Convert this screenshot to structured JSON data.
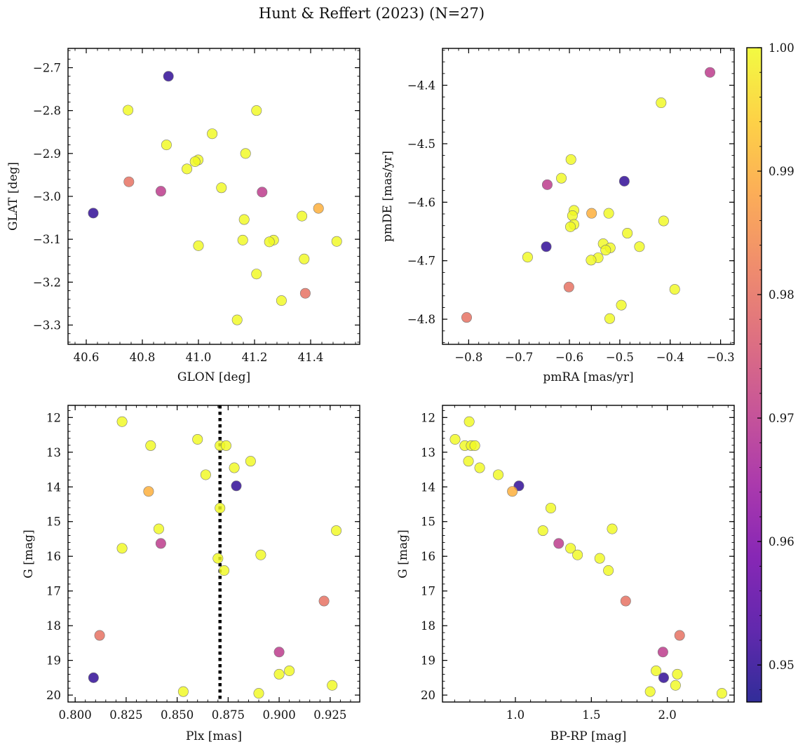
{
  "title": "Hunt & Reffert (2023) (N=27)",
  "colormap": {
    "stops": [
      "#0d0887",
      "#46039f",
      "#7201a8",
      "#9c179e",
      "#bd3786",
      "#d8576b",
      "#ed7953",
      "#fb9f3a",
      "#fdca26",
      "#f0f921"
    ],
    "vmin": 0.947,
    "vmax": 1.0,
    "ticks": [
      0.95,
      0.96,
      0.97,
      0.98,
      0.99,
      1.0
    ],
    "tick_labels": [
      "0.95",
      "0.96",
      "0.97",
      "0.98",
      "0.99",
      "1.00"
    ]
  },
  "chart_data": [
    {
      "type": "scatter",
      "xlabel": "GLON [deg]",
      "ylabel": "GLAT [deg]",
      "xlim": [
        40.535,
        41.575
      ],
      "ylim": [
        -3.345,
        -2.655
      ],
      "xticks": [
        40.6,
        40.8,
        41.0,
        41.2,
        41.4
      ],
      "xtick_labels": [
        "40.6",
        "40.8",
        "41.0",
        "41.2",
        "41.4"
      ],
      "yticks": [
        -2.7,
        -2.8,
        -2.9,
        -3.0,
        -3.1,
        -3.2,
        -3.3
      ],
      "ytick_labels": [
        "−2.7",
        "−2.8",
        "−2.9",
        "−3.0",
        "−3.1",
        "−3.2",
        "−3.3"
      ],
      "invert_y": false,
      "points": [
        {
          "x": 40.893,
          "y": -2.72,
          "c": 0.95
        },
        {
          "x": 40.749,
          "y": -2.799,
          "c": 1.0
        },
        {
          "x": 41.207,
          "y": -2.8,
          "c": 1.0
        },
        {
          "x": 41.049,
          "y": -2.854,
          "c": 1.0
        },
        {
          "x": 40.886,
          "y": -2.88,
          "c": 1.0
        },
        {
          "x": 41.168,
          "y": -2.9,
          "c": 1.0
        },
        {
          "x": 40.999,
          "y": -2.915,
          "c": 1.0
        },
        {
          "x": 40.988,
          "y": -2.919,
          "c": 1.0
        },
        {
          "x": 40.959,
          "y": -2.936,
          "c": 1.0
        },
        {
          "x": 40.752,
          "y": -2.966,
          "c": 0.98
        },
        {
          "x": 41.082,
          "y": -2.98,
          "c": 1.0
        },
        {
          "x": 40.866,
          "y": -2.988,
          "c": 0.97
        },
        {
          "x": 41.227,
          "y": -2.99,
          "c": 0.97
        },
        {
          "x": 41.428,
          "y": -3.028,
          "c": 0.99
        },
        {
          "x": 40.625,
          "y": -3.039,
          "c": 0.95
        },
        {
          "x": 41.369,
          "y": -3.046,
          "c": 1.0
        },
        {
          "x": 41.163,
          "y": -3.054,
          "c": 1.0
        },
        {
          "x": 41.158,
          "y": -3.102,
          "c": 1.0
        },
        {
          "x": 41.268,
          "y": -3.102,
          "c": 1.0
        },
        {
          "x": 41.253,
          "y": -3.106,
          "c": 1.0
        },
        {
          "x": 41.493,
          "y": -3.105,
          "c": 1.0
        },
        {
          "x": 41.0,
          "y": -3.115,
          "c": 1.0
        },
        {
          "x": 41.377,
          "y": -3.146,
          "c": 1.0
        },
        {
          "x": 41.207,
          "y": -3.181,
          "c": 1.0
        },
        {
          "x": 41.381,
          "y": -3.226,
          "c": 0.98
        },
        {
          "x": 41.296,
          "y": -3.243,
          "c": 1.0
        },
        {
          "x": 41.138,
          "y": -3.288,
          "c": 1.0
        }
      ]
    },
    {
      "type": "scatter",
      "xlabel": "pmRA [mas/yr]",
      "ylabel": "pmDE [mas/yr]",
      "xlim": [
        -0.852,
        -0.273
      ],
      "ylim": [
        -4.843,
        -4.337
      ],
      "xticks": [
        -0.8,
        -0.7,
        -0.6,
        -0.5,
        -0.4,
        -0.3
      ],
      "xtick_labels": [
        "−0.8",
        "−0.7",
        "−0.6",
        "−0.5",
        "−0.4",
        "−0.3"
      ],
      "yticks": [
        -4.4,
        -4.5,
        -4.6,
        -4.7,
        -4.8
      ],
      "ytick_labels": [
        "−4.4",
        "−4.5",
        "−4.6",
        "−4.7",
        "−4.8"
      ],
      "invert_y": false,
      "points": [
        {
          "x": -0.321,
          "y": -4.378,
          "c": 0.97
        },
        {
          "x": -0.418,
          "y": -4.43,
          "c": 1.0
        },
        {
          "x": -0.597,
          "y": -4.527,
          "c": 1.0
        },
        {
          "x": -0.616,
          "y": -4.559,
          "c": 1.0
        },
        {
          "x": -0.491,
          "y": -4.564,
          "c": 0.95
        },
        {
          "x": -0.644,
          "y": -4.57,
          "c": 0.97
        },
        {
          "x": -0.591,
          "y": -4.614,
          "c": 1.0
        },
        {
          "x": -0.594,
          "y": -4.623,
          "c": 1.0
        },
        {
          "x": -0.556,
          "y": -4.619,
          "c": 0.99
        },
        {
          "x": -0.522,
          "y": -4.619,
          "c": 1.0
        },
        {
          "x": -0.413,
          "y": -4.632,
          "c": 1.0
        },
        {
          "x": -0.591,
          "y": -4.638,
          "c": 1.0
        },
        {
          "x": -0.598,
          "y": -4.642,
          "c": 1.0
        },
        {
          "x": -0.485,
          "y": -4.653,
          "c": 1.0
        },
        {
          "x": -0.533,
          "y": -4.671,
          "c": 1.0
        },
        {
          "x": -0.646,
          "y": -4.676,
          "c": 0.95
        },
        {
          "x": -0.461,
          "y": -4.676,
          "c": 1.0
        },
        {
          "x": -0.519,
          "y": -4.678,
          "c": 1.0
        },
        {
          "x": -0.528,
          "y": -4.682,
          "c": 1.0
        },
        {
          "x": -0.683,
          "y": -4.694,
          "c": 1.0
        },
        {
          "x": -0.543,
          "y": -4.695,
          "c": 1.0
        },
        {
          "x": -0.557,
          "y": -4.699,
          "c": 1.0
        },
        {
          "x": -0.601,
          "y": -4.745,
          "c": 0.98
        },
        {
          "x": -0.391,
          "y": -4.749,
          "c": 1.0
        },
        {
          "x": -0.497,
          "y": -4.776,
          "c": 1.0
        },
        {
          "x": -0.804,
          "y": -4.797,
          "c": 0.98
        },
        {
          "x": -0.52,
          "y": -4.799,
          "c": 1.0
        }
      ]
    },
    {
      "type": "scatter",
      "xlabel": "Plx [mas]",
      "ylabel": "G [mag]",
      "xlim": [
        0.7965,
        0.9395
      ],
      "ylim": [
        11.65,
        20.2
      ],
      "xticks": [
        0.8,
        0.825,
        0.85,
        0.875,
        0.9,
        0.925
      ],
      "xtick_labels": [
        "0.800",
        "0.825",
        "0.850",
        "0.875",
        "0.900",
        "0.925"
      ],
      "yticks": [
        12,
        13,
        14,
        15,
        16,
        17,
        18,
        19,
        20
      ],
      "ytick_labels": [
        "12",
        "13",
        "14",
        "15",
        "16",
        "17",
        "18",
        "19",
        "20"
      ],
      "invert_y": true,
      "vline": 0.871,
      "points": [
        {
          "x": 0.823,
          "y": 12.12,
          "c": 1.0
        },
        {
          "x": 0.86,
          "y": 12.63,
          "c": 1.0
        },
        {
          "x": 0.837,
          "y": 12.81,
          "c": 1.0
        },
        {
          "x": 0.871,
          "y": 12.81,
          "c": 1.0
        },
        {
          "x": 0.874,
          "y": 12.81,
          "c": 1.0
        },
        {
          "x": 0.886,
          "y": 13.26,
          "c": 1.0
        },
        {
          "x": 0.878,
          "y": 13.45,
          "c": 1.0
        },
        {
          "x": 0.864,
          "y": 13.65,
          "c": 1.0
        },
        {
          "x": 0.879,
          "y": 13.97,
          "c": 0.95
        },
        {
          "x": 0.836,
          "y": 14.13,
          "c": 0.99
        },
        {
          "x": 0.871,
          "y": 14.61,
          "c": 1.0
        },
        {
          "x": 0.841,
          "y": 15.21,
          "c": 1.0
        },
        {
          "x": 0.928,
          "y": 15.26,
          "c": 1.0
        },
        {
          "x": 0.842,
          "y": 15.63,
          "c": 0.97
        },
        {
          "x": 0.823,
          "y": 15.77,
          "c": 1.0
        },
        {
          "x": 0.891,
          "y": 15.96,
          "c": 1.0
        },
        {
          "x": 0.87,
          "y": 16.06,
          "c": 1.0
        },
        {
          "x": 0.873,
          "y": 16.41,
          "c": 1.0
        },
        {
          "x": 0.922,
          "y": 17.29,
          "c": 0.98
        },
        {
          "x": 0.812,
          "y": 18.28,
          "c": 0.98
        },
        {
          "x": 0.9,
          "y": 18.76,
          "c": 0.97
        },
        {
          "x": 0.905,
          "y": 19.3,
          "c": 1.0
        },
        {
          "x": 0.9,
          "y": 19.4,
          "c": 1.0
        },
        {
          "x": 0.809,
          "y": 19.5,
          "c": 0.95
        },
        {
          "x": 0.926,
          "y": 19.72,
          "c": 1.0
        },
        {
          "x": 0.853,
          "y": 19.9,
          "c": 1.0
        },
        {
          "x": 0.89,
          "y": 19.95,
          "c": 1.0
        }
      ]
    },
    {
      "type": "scatter",
      "xlabel": "BP-RP [mag]",
      "ylabel": "G [mag]",
      "xlim": [
        0.52,
        2.44
      ],
      "ylim": [
        11.65,
        20.2
      ],
      "xticks": [
        1.0,
        1.5,
        2.0
      ],
      "xtick_labels": [
        "1.0",
        "1.5",
        "2.0"
      ],
      "yticks": [
        12,
        13,
        14,
        15,
        16,
        17,
        18,
        19,
        20
      ],
      "ytick_labels": [
        "12",
        "13",
        "14",
        "15",
        "16",
        "17",
        "18",
        "19",
        "20"
      ],
      "invert_y": true,
      "points": [
        {
          "x": 0.696,
          "y": 12.12,
          "c": 1.0
        },
        {
          "x": 0.603,
          "y": 12.63,
          "c": 1.0
        },
        {
          "x": 0.667,
          "y": 12.81,
          "c": 1.0
        },
        {
          "x": 0.709,
          "y": 12.81,
          "c": 1.0
        },
        {
          "x": 0.733,
          "y": 12.81,
          "c": 1.0
        },
        {
          "x": 0.691,
          "y": 13.26,
          "c": 1.0
        },
        {
          "x": 0.765,
          "y": 13.45,
          "c": 1.0
        },
        {
          "x": 0.887,
          "y": 13.65,
          "c": 1.0
        },
        {
          "x": 1.023,
          "y": 13.97,
          "c": 0.95
        },
        {
          "x": 0.98,
          "y": 14.13,
          "c": 0.99
        },
        {
          "x": 1.233,
          "y": 14.61,
          "c": 1.0
        },
        {
          "x": 1.637,
          "y": 15.21,
          "c": 1.0
        },
        {
          "x": 1.181,
          "y": 15.26,
          "c": 1.0
        },
        {
          "x": 1.285,
          "y": 15.63,
          "c": 0.97
        },
        {
          "x": 1.363,
          "y": 15.77,
          "c": 1.0
        },
        {
          "x": 1.409,
          "y": 15.96,
          "c": 1.0
        },
        {
          "x": 1.555,
          "y": 16.06,
          "c": 1.0
        },
        {
          "x": 1.612,
          "y": 16.41,
          "c": 1.0
        },
        {
          "x": 1.726,
          "y": 17.29,
          "c": 0.98
        },
        {
          "x": 2.081,
          "y": 18.28,
          "c": 0.98
        },
        {
          "x": 1.971,
          "y": 18.76,
          "c": 0.97
        },
        {
          "x": 1.926,
          "y": 19.3,
          "c": 1.0
        },
        {
          "x": 2.066,
          "y": 19.4,
          "c": 1.0
        },
        {
          "x": 1.976,
          "y": 19.5,
          "c": 0.95
        },
        {
          "x": 2.054,
          "y": 19.72,
          "c": 1.0
        },
        {
          "x": 1.887,
          "y": 19.9,
          "c": 1.0
        },
        {
          "x": 2.359,
          "y": 19.95,
          "c": 1.0
        }
      ]
    }
  ]
}
